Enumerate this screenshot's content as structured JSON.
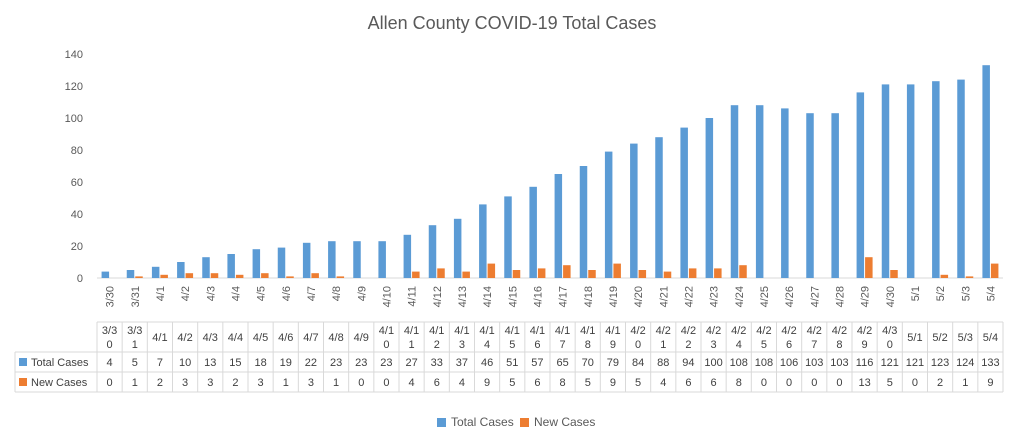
{
  "chart_data": {
    "type": "bar",
    "title": "Allen County COVID-19 Total Cases",
    "categories": [
      "3/30",
      "3/31",
      "4/1",
      "4/2",
      "4/3",
      "4/4",
      "4/5",
      "4/6",
      "4/7",
      "4/8",
      "4/9",
      "4/10",
      "4/11",
      "4/12",
      "4/13",
      "4/14",
      "4/15",
      "4/16",
      "4/17",
      "4/18",
      "4/19",
      "4/20",
      "4/21",
      "4/22",
      "4/23",
      "4/24",
      "4/25",
      "4/26",
      "4/27",
      "4/28",
      "4/29",
      "4/30",
      "5/1",
      "5/2",
      "5/3",
      "5/4"
    ],
    "table_categories": [
      "3/3\n0",
      "3/3\n1",
      "4/1",
      "4/2",
      "4/3",
      "4/4",
      "4/5",
      "4/6",
      "4/7",
      "4/8",
      "4/9",
      "4/1\n0",
      "4/1\n1",
      "4/1\n2",
      "4/1\n3",
      "4/1\n4",
      "4/1\n5",
      "4/1\n6",
      "4/1\n7",
      "4/1\n8",
      "4/1\n9",
      "4/2\n0",
      "4/2\n1",
      "4/2\n2",
      "4/2\n3",
      "4/2\n4",
      "4/2\n5",
      "4/2\n6",
      "4/2\n7",
      "4/2\n8",
      "4/2\n9",
      "4/3\n0",
      "5/1",
      "5/2",
      "5/3",
      "5/4"
    ],
    "series": [
      {
        "name": "Total Cases",
        "color": "#5B9BD5",
        "values": [
          4,
          5,
          7,
          10,
          13,
          15,
          18,
          19,
          22,
          23,
          23,
          23,
          27,
          33,
          37,
          46,
          51,
          57,
          65,
          70,
          79,
          84,
          88,
          94,
          100,
          108,
          108,
          106,
          103,
          103,
          116,
          121,
          121,
          123,
          124,
          133
        ]
      },
      {
        "name": "New Cases",
        "color": "#ED7D31",
        "values": [
          0,
          1,
          2,
          3,
          3,
          2,
          3,
          1,
          3,
          1,
          0,
          0,
          4,
          6,
          4,
          9,
          5,
          6,
          8,
          5,
          9,
          5,
          4,
          6,
          6,
          8,
          0,
          0,
          0,
          0,
          13,
          5,
          0,
          2,
          1,
          9
        ]
      }
    ],
    "yticks": [
      0,
      20,
      40,
      60,
      80,
      100,
      120,
      140
    ],
    "ylim": [
      0,
      140
    ],
    "grid": false,
    "legend": "bottom",
    "data_table": true
  }
}
